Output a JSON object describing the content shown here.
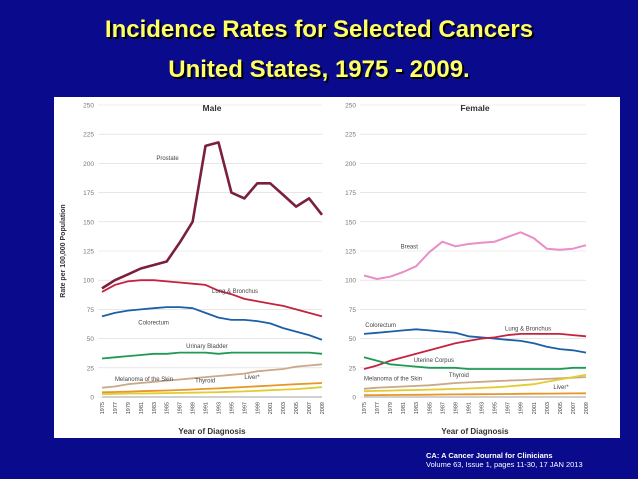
{
  "slide": {
    "title_line1": "Incidence Rates for Selected Cancers",
    "title_line2": "United States, 1975 - 2009.",
    "citation_line1": "CA: A Cancer Journal for Clinicians",
    "citation_line2": "Volume 63, Issue 1, pages 11-30, 17 JAN 2013"
  },
  "colors": {
    "prostate": "#7a1f3c",
    "lung": "#c4223f",
    "colorectum": "#1b5fa8",
    "bladder": "#1f9a54",
    "melanoma": "#caa88a",
    "thyroid": "#e2cc30",
    "liver": "#e89628",
    "breast": "#ea8ec8",
    "uterine": "#1f9a54"
  },
  "chart_data": [
    {
      "type": "line",
      "panel": "male",
      "title": "Male",
      "ylabel": "Rate per 100,000 Population",
      "xlabel": "Year of Diagnosis",
      "ylim": [
        0,
        250
      ],
      "yticks": [
        "0",
        "25",
        "50",
        "75",
        "100",
        "125",
        "150",
        "175",
        "200",
        "225",
        "250"
      ],
      "x": [
        "1975",
        "1977",
        "1979",
        "1981",
        "1983",
        "1985",
        "1987",
        "1989",
        "1991",
        "1993",
        "1995",
        "1997",
        "1999",
        "2001",
        "2003",
        "2005",
        "2007",
        "2009"
      ],
      "series": [
        {
          "name": "Prostate",
          "key": "prostate",
          "label": "Prostate",
          "values": [
            93,
            100,
            105,
            110,
            113,
            116,
            132,
            150,
            215,
            218,
            175,
            170,
            183,
            183,
            173,
            163,
            170,
            156
          ]
        },
        {
          "name": "Lung & Bronchus",
          "key": "lung",
          "label": "Lung & Bronchus",
          "values": [
            90,
            96,
            99,
            100,
            100,
            99,
            98,
            97,
            96,
            91,
            88,
            84,
            82,
            80,
            78,
            75,
            72,
            69
          ]
        },
        {
          "name": "Colorectum",
          "key": "colorectum",
          "label": "Colorectum",
          "values": [
            69,
            72,
            74,
            75,
            76,
            77,
            77,
            76,
            72,
            68,
            66,
            66,
            65,
            63,
            59,
            56,
            53,
            49
          ]
        },
        {
          "name": "Urinary Bladder",
          "key": "bladder",
          "label": "Urinary Bladder",
          "values": [
            33,
            34,
            35,
            36,
            37,
            37,
            38,
            38,
            38,
            37,
            38,
            38,
            38,
            38,
            38,
            38,
            38,
            37
          ]
        },
        {
          "name": "Melanoma of the Skin",
          "key": "melanoma",
          "label": "Melanoma of the Skin",
          "values": [
            8,
            9,
            11,
            12,
            13,
            14,
            15,
            16,
            17,
            18,
            19,
            20,
            22,
            23,
            24,
            26,
            27,
            28
          ]
        },
        {
          "name": "Thyroid",
          "key": "thyroid",
          "label": "Thyroid",
          "values": [
            2.5,
            2.7,
            3,
            3,
            3.2,
            3.3,
            3.5,
            3.7,
            3.9,
            4.1,
            4.5,
            4.8,
            5.3,
            5.8,
            6.3,
            6.8,
            7.5,
            8.5
          ]
        },
        {
          "name": "Liver*",
          "key": "liver",
          "label": "Liver*",
          "values": [
            4,
            4.3,
            4.6,
            5,
            5.3,
            5.6,
            6,
            6.4,
            6.9,
            7.4,
            8,
            8.6,
            9.2,
            9.8,
            10.4,
            11,
            11.5,
            12
          ]
        }
      ]
    },
    {
      "type": "line",
      "panel": "female",
      "title": "Female",
      "xlabel": "Year of Diagnosis",
      "ylim": [
        0,
        250
      ],
      "yticks": [
        "0",
        "25",
        "50",
        "75",
        "100",
        "125",
        "150",
        "175",
        "200",
        "225",
        "250"
      ],
      "x": [
        "1975",
        "1977",
        "1979",
        "1981",
        "1983",
        "1985",
        "1987",
        "1989",
        "1991",
        "1993",
        "1995",
        "1997",
        "1999",
        "2001",
        "2003",
        "2005",
        "2007",
        "2009"
      ],
      "series": [
        {
          "name": "Breast",
          "key": "breast",
          "label": "Breast",
          "values": [
            104,
            101,
            103,
            107,
            112,
            124,
            133,
            129,
            131,
            132,
            133,
            137,
            141,
            136,
            127,
            126,
            127,
            130
          ]
        },
        {
          "name": "Colorectum",
          "key": "colorectum",
          "label": "Colorectum",
          "values": [
            54,
            55,
            56,
            57,
            58,
            57,
            56,
            55,
            52,
            51,
            50,
            49,
            48,
            46,
            43,
            41,
            40,
            38
          ]
        },
        {
          "name": "Lung & Bronchus",
          "key": "lung",
          "label": "Lung & Bronchus",
          "values": [
            24,
            27,
            31,
            34,
            37,
            40,
            43,
            46,
            48,
            50,
            51,
            53,
            54,
            54,
            54,
            54,
            53,
            52
          ]
        },
        {
          "name": "Uterine Corpus",
          "key": "uterine",
          "label": "Uterine Corpus",
          "values": [
            34,
            31,
            28,
            27,
            26,
            25,
            25,
            25,
            24,
            24,
            24,
            24,
            24,
            24,
            24,
            24,
            25,
            25
          ]
        },
        {
          "name": "Melanoma of the Skin",
          "key": "melanoma",
          "label": "Melanoma of the Skin",
          "values": [
            7,
            8,
            8.5,
            9,
            9.5,
            10,
            11,
            12,
            12.5,
            13,
            13.5,
            14,
            14.5,
            15,
            15.5,
            16,
            16.5,
            17
          ]
        },
        {
          "name": "Thyroid",
          "key": "thyroid",
          "label": "Thyroid",
          "values": [
            5,
            5.2,
            5.5,
            5.8,
            6,
            6.3,
            6.6,
            6.9,
            7.3,
            7.8,
            8.3,
            9,
            10,
            11,
            13,
            15,
            17,
            19
          ]
        },
        {
          "name": "Liver*",
          "key": "liver",
          "label": "Liver*",
          "values": [
            1.5,
            1.6,
            1.7,
            1.8,
            1.9,
            2,
            2.1,
            2.2,
            2.3,
            2.4,
            2.5,
            2.6,
            2.7,
            2.8,
            2.9,
            3,
            3.1,
            3.2
          ]
        }
      ]
    }
  ]
}
